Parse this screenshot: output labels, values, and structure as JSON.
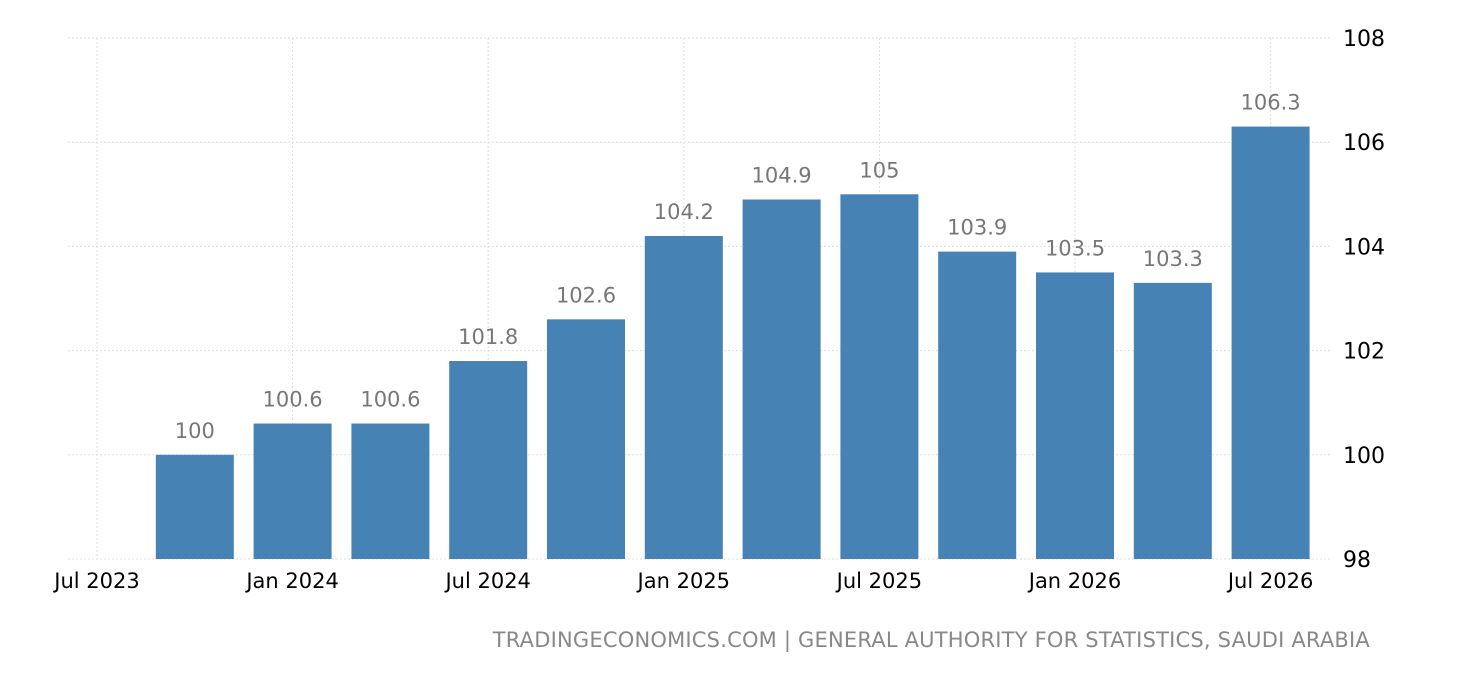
{
  "chart_data": {
    "type": "bar",
    "title": "",
    "xlabel": "",
    "ylabel": "",
    "x": [
      "2023-10",
      "2024-01",
      "2024-04",
      "2024-07",
      "2024-10",
      "2025-01",
      "2025-04",
      "2025-07",
      "2025-10",
      "2026-01",
      "2026-04",
      "2026-07"
    ],
    "values": [
      100,
      100.6,
      100.6,
      101.8,
      102.6,
      104.2,
      104.9,
      105,
      103.9,
      103.5,
      103.3,
      106.3
    ],
    "value_labels": [
      "100",
      "100.6",
      "100.6",
      "101.8",
      "102.6",
      "104.2",
      "104.9",
      "105",
      "103.9",
      "103.5",
      "103.3",
      "106.3"
    ],
    "x_ticks": [
      "Jul 2023",
      "Jan 2024",
      "Jul 2024",
      "Jan 2025",
      "Jul 2025",
      "Jan 2026",
      "Jul 2026"
    ],
    "y_ticks": [
      "98",
      "100",
      "102",
      "104",
      "106",
      "108"
    ],
    "ylim": [
      98,
      108
    ],
    "grid": true,
    "legend": "none",
    "y_axis_side": "right",
    "colors": {
      "bar": "#4682b4",
      "value_label": "#777777",
      "tick_label": "#000000",
      "grid": "#dddddd"
    }
  },
  "footer": {
    "source": "TRADINGECONOMICS.COM | GENERAL AUTHORITY FOR STATISTICS, SAUDI ARABIA"
  }
}
